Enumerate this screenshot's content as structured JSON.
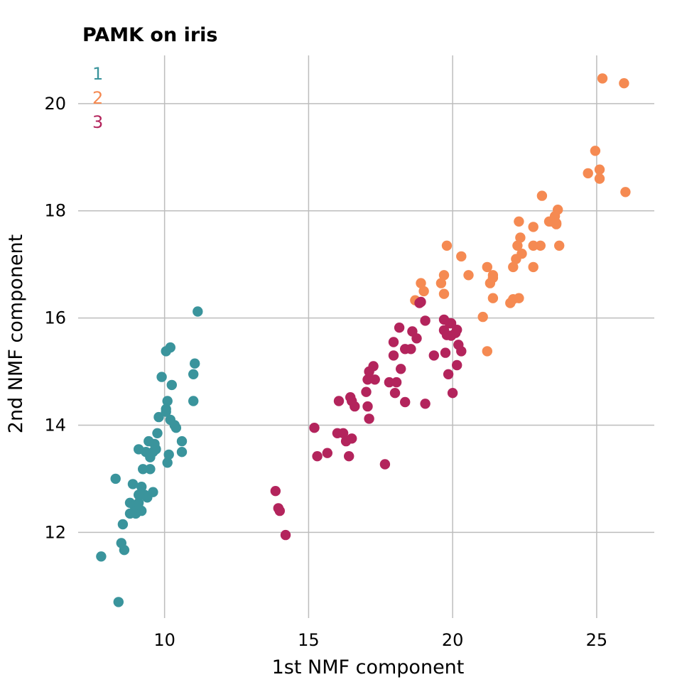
{
  "chart_data": {
    "type": "scatter",
    "title": "PAMK on iris",
    "xlabel": "1st NMF component",
    "ylabel": "2nd NMF component",
    "xlim": [
      7.0,
      27.0
    ],
    "ylim": [
      10.4,
      20.9
    ],
    "xticks": [
      10,
      15,
      20,
      25
    ],
    "yticks": [
      12,
      14,
      16,
      18,
      20
    ],
    "grid": true,
    "legend_position": "top-left",
    "series": [
      {
        "name": "1",
        "color": "#3a949c",
        "points": [
          [
            7.8,
            11.55
          ],
          [
            8.4,
            10.7
          ],
          [
            8.5,
            11.8
          ],
          [
            8.6,
            11.67
          ],
          [
            8.55,
            12.15
          ],
          [
            8.3,
            13.0
          ],
          [
            8.8,
            12.35
          ],
          [
            8.8,
            12.55
          ],
          [
            9.0,
            12.35
          ],
          [
            9.1,
            12.45
          ],
          [
            9.2,
            12.4
          ],
          [
            8.95,
            12.5
          ],
          [
            9.1,
            12.55
          ],
          [
            8.9,
            12.9
          ],
          [
            9.1,
            12.7
          ],
          [
            9.2,
            12.85
          ],
          [
            9.3,
            12.7
          ],
          [
            9.4,
            12.65
          ],
          [
            9.6,
            12.75
          ],
          [
            9.25,
            13.18
          ],
          [
            9.5,
            13.18
          ],
          [
            9.1,
            13.55
          ],
          [
            9.35,
            13.5
          ],
          [
            9.45,
            13.7
          ],
          [
            9.5,
            13.4
          ],
          [
            9.6,
            13.5
          ],
          [
            9.7,
            13.55
          ],
          [
            9.65,
            13.65
          ],
          [
            9.75,
            13.85
          ],
          [
            9.8,
            14.15
          ],
          [
            10.1,
            13.3
          ],
          [
            10.15,
            13.45
          ],
          [
            10.6,
            13.5
          ],
          [
            10.6,
            13.7
          ],
          [
            10.05,
            14.3
          ],
          [
            10.1,
            14.45
          ],
          [
            10.2,
            14.1
          ],
          [
            10.35,
            14.0
          ],
          [
            10.4,
            13.95
          ],
          [
            9.9,
            14.9
          ],
          [
            10.25,
            14.75
          ],
          [
            10.05,
            15.38
          ],
          [
            10.2,
            15.45
          ],
          [
            10.05,
            14.25
          ],
          [
            11.0,
            14.45
          ],
          [
            11.0,
            14.95
          ],
          [
            11.05,
            15.15
          ],
          [
            11.15,
            16.12
          ]
        ]
      },
      {
        "name": "2",
        "color": "#f58a52",
        "points": [
          [
            18.7,
            16.33
          ],
          [
            18.9,
            16.65
          ],
          [
            19.0,
            16.5
          ],
          [
            19.6,
            16.65
          ],
          [
            19.7,
            16.8
          ],
          [
            19.7,
            16.45
          ],
          [
            19.8,
            17.35
          ],
          [
            20.3,
            17.15
          ],
          [
            20.55,
            16.8
          ],
          [
            21.05,
            16.02
          ],
          [
            21.2,
            15.38
          ],
          [
            21.2,
            16.95
          ],
          [
            21.3,
            16.65
          ],
          [
            21.4,
            16.8
          ],
          [
            21.4,
            16.37
          ],
          [
            21.4,
            16.75
          ],
          [
            22.0,
            16.28
          ],
          [
            22.1,
            16.35
          ],
          [
            22.1,
            16.95
          ],
          [
            22.2,
            17.1
          ],
          [
            22.25,
            17.35
          ],
          [
            22.3,
            17.8
          ],
          [
            22.3,
            16.37
          ],
          [
            22.35,
            17.5
          ],
          [
            22.4,
            17.2
          ],
          [
            22.8,
            17.7
          ],
          [
            22.8,
            17.35
          ],
          [
            22.8,
            16.95
          ],
          [
            23.05,
            17.35
          ],
          [
            23.1,
            18.28
          ],
          [
            23.35,
            17.8
          ],
          [
            23.45,
            17.8
          ],
          [
            23.55,
            17.9
          ],
          [
            23.6,
            17.75
          ],
          [
            23.6,
            17.77
          ],
          [
            23.65,
            18.02
          ],
          [
            23.7,
            17.35
          ],
          [
            24.7,
            18.7
          ],
          [
            24.95,
            19.12
          ],
          [
            25.1,
            18.77
          ],
          [
            25.1,
            18.6
          ],
          [
            25.2,
            20.47
          ],
          [
            25.95,
            20.38
          ],
          [
            26.0,
            18.35
          ]
        ]
      },
      {
        "name": "3",
        "color": "#b3245c",
        "points": [
          [
            13.85,
            12.77
          ],
          [
            13.95,
            12.45
          ],
          [
            14.0,
            12.4
          ],
          [
            14.2,
            11.95
          ],
          [
            15.2,
            13.95
          ],
          [
            15.3,
            13.42
          ],
          [
            15.65,
            13.48
          ],
          [
            16.0,
            13.85
          ],
          [
            16.05,
            14.45
          ],
          [
            16.2,
            13.85
          ],
          [
            16.3,
            13.7
          ],
          [
            16.4,
            13.42
          ],
          [
            16.45,
            14.52
          ],
          [
            16.5,
            14.45
          ],
          [
            16.5,
            13.75
          ],
          [
            16.6,
            14.35
          ],
          [
            17.0,
            14.62
          ],
          [
            17.05,
            14.85
          ],
          [
            17.1,
            15.0
          ],
          [
            17.05,
            14.35
          ],
          [
            17.1,
            14.12
          ],
          [
            17.25,
            15.1
          ],
          [
            17.3,
            14.85
          ],
          [
            17.65,
            13.27
          ],
          [
            17.8,
            14.8
          ],
          [
            17.95,
            15.55
          ],
          [
            17.95,
            15.3
          ],
          [
            18.0,
            14.6
          ],
          [
            18.05,
            14.8
          ],
          [
            18.15,
            15.82
          ],
          [
            18.2,
            15.05
          ],
          [
            18.35,
            15.42
          ],
          [
            18.35,
            14.43
          ],
          [
            18.55,
            15.42
          ],
          [
            18.6,
            15.75
          ],
          [
            18.75,
            15.62
          ],
          [
            18.85,
            16.28
          ],
          [
            18.9,
            16.3
          ],
          [
            19.05,
            15.95
          ],
          [
            19.05,
            14.4
          ],
          [
            19.35,
            15.3
          ],
          [
            19.7,
            15.97
          ],
          [
            19.7,
            15.77
          ],
          [
            19.75,
            15.35
          ],
          [
            19.8,
            15.68
          ],
          [
            19.85,
            14.95
          ],
          [
            19.9,
            15.9
          ],
          [
            19.95,
            15.67
          ],
          [
            19.95,
            15.9
          ],
          [
            20.0,
            14.6
          ],
          [
            20.1,
            15.72
          ],
          [
            20.15,
            15.78
          ],
          [
            20.2,
            15.5
          ],
          [
            20.3,
            15.38
          ],
          [
            20.15,
            15.12
          ]
        ]
      }
    ]
  }
}
